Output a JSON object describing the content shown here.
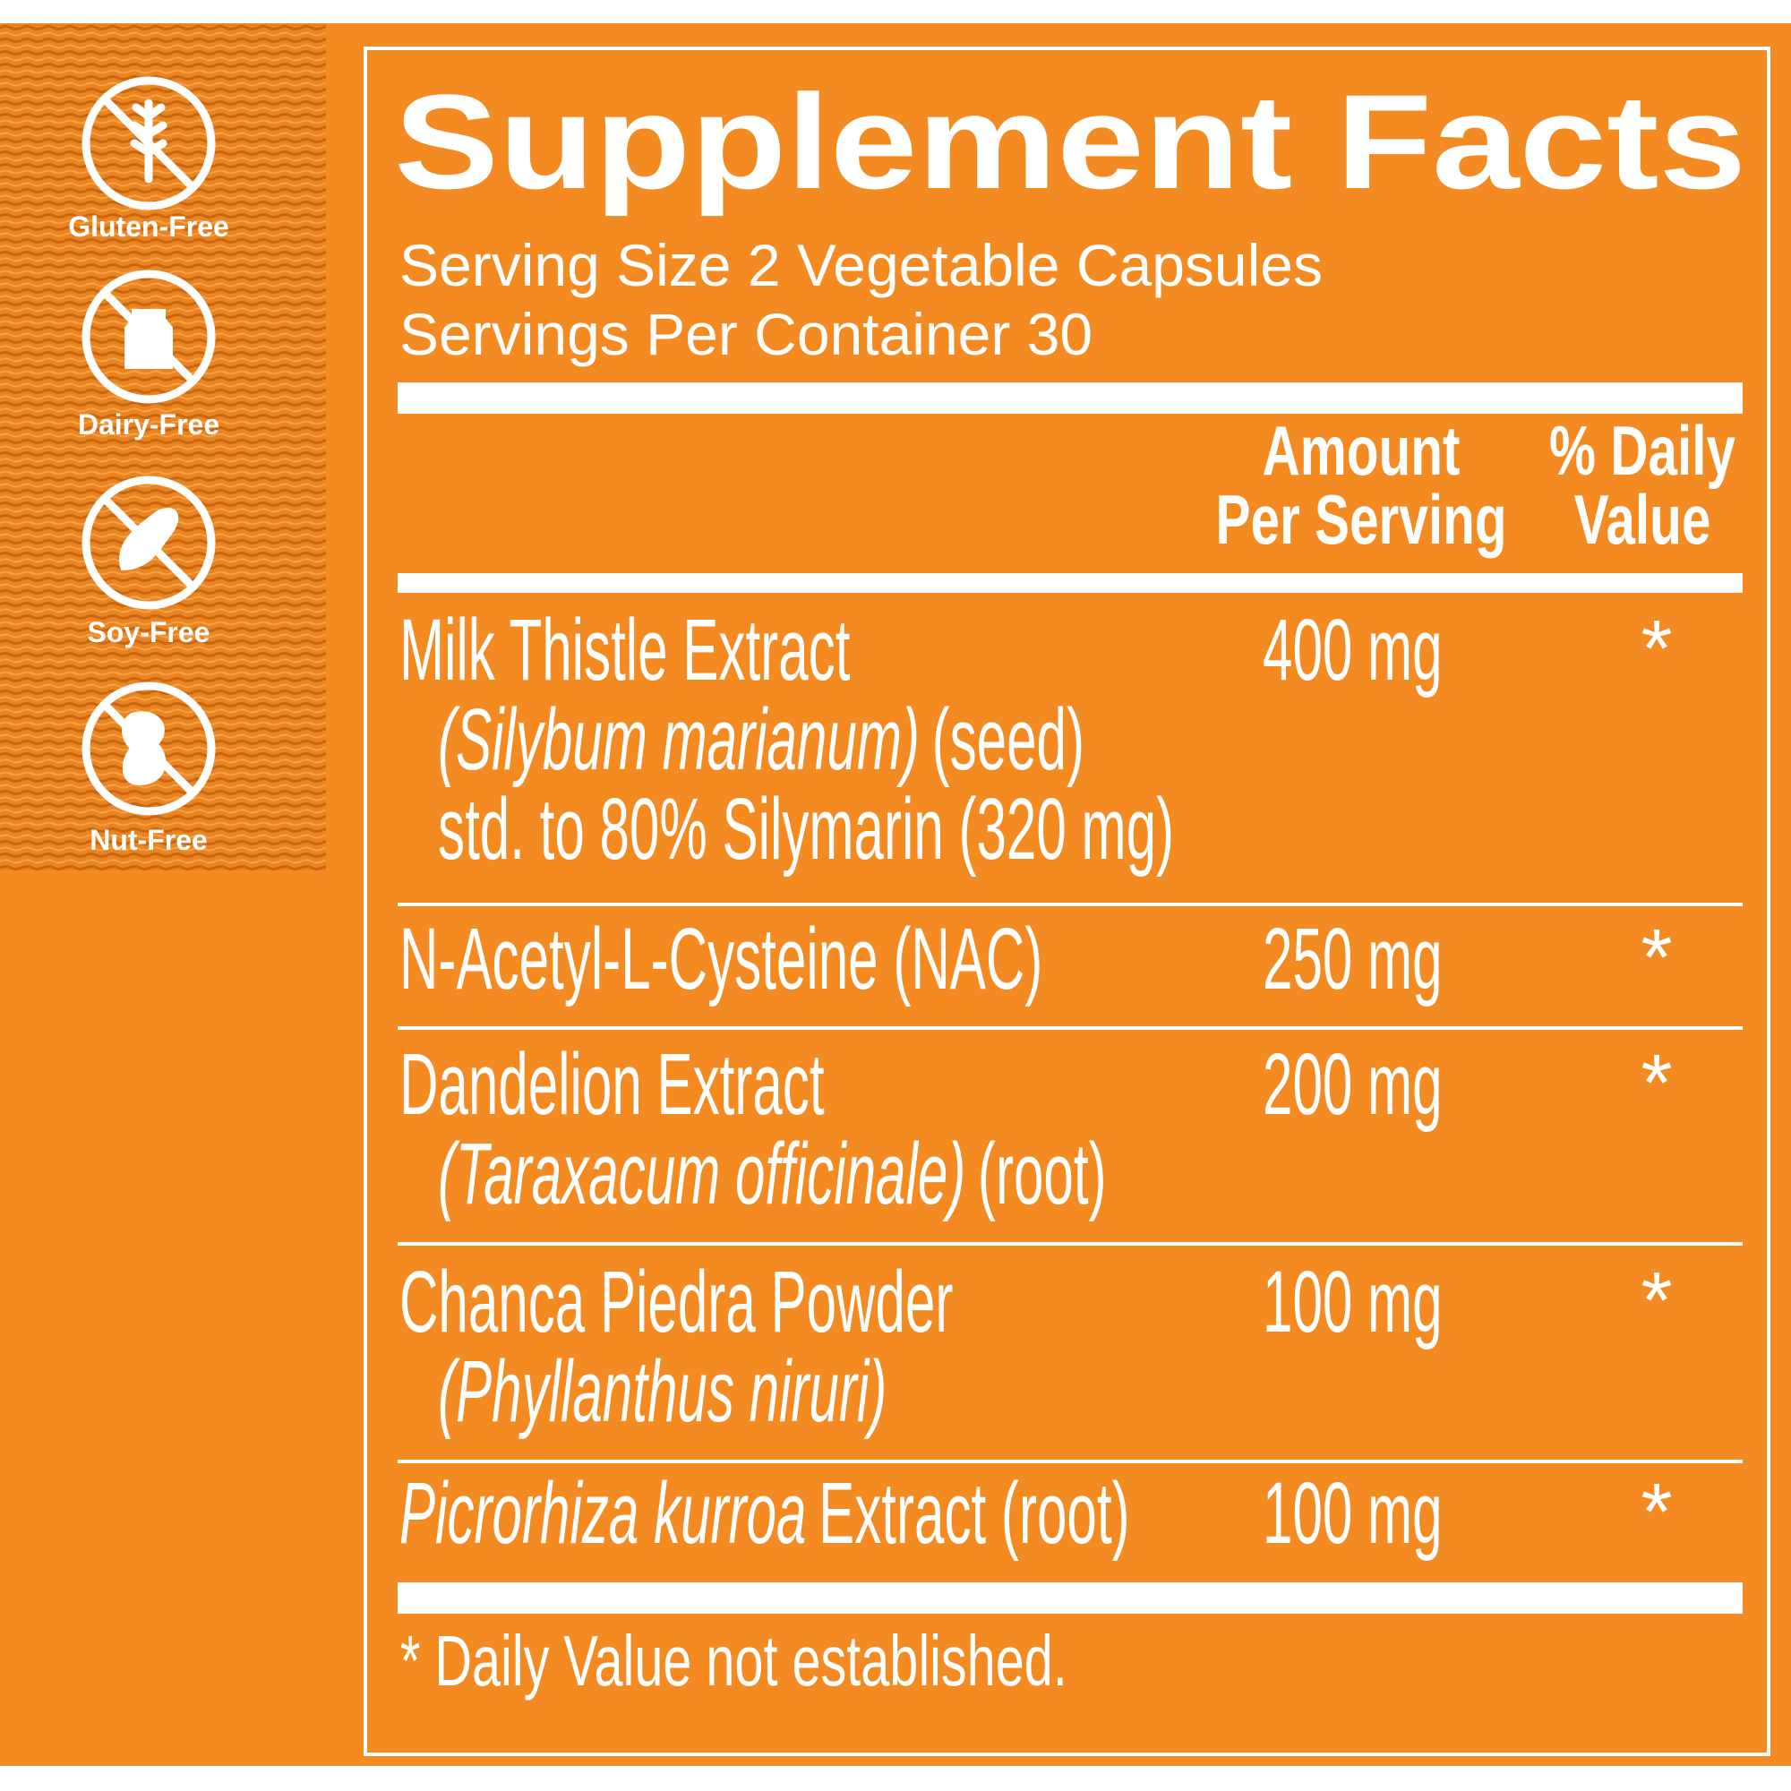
{
  "header": {
    "title": "Supplement Facts",
    "serving_size": "Serving Size 2 Vegetable Capsules",
    "servings_per_container": "Servings Per Container 30"
  },
  "badges": [
    "Gluten-Free",
    "Dairy-Free",
    "Soy-Free",
    "Nut-Free"
  ],
  "columns": {
    "amount": [
      "Amount",
      "Per Serving"
    ],
    "daily_value": [
      "% Daily",
      "Value"
    ]
  },
  "rows": [
    {
      "lines": [
        [
          {
            "text": "Milk Thistle Extract"
          }
        ],
        [
          {
            "text": "(Silybum marianum)",
            "italic": true
          },
          {
            "text": "(seed)"
          }
        ],
        [
          {
            "text": "std. to 80% Silymarin (320 mg)"
          }
        ]
      ],
      "amount": "400 mg",
      "dv": "*"
    },
    {
      "lines": [
        [
          {
            "text": "N-Acetyl-L-Cysteine (NAC)"
          }
        ]
      ],
      "amount": "250 mg",
      "dv": "*"
    },
    {
      "lines": [
        [
          {
            "text": "Dandelion Extract"
          }
        ],
        [
          {
            "text": "(Taraxacum officinale)",
            "italic": true
          },
          {
            "text": "(root)"
          }
        ]
      ],
      "amount": "200 mg",
      "dv": "*"
    },
    {
      "lines": [
        [
          {
            "text": "Chanca Piedra Powder"
          }
        ],
        [
          {
            "text": "(Phyllanthus niruri)",
            "italic": true
          }
        ]
      ],
      "amount": "100 mg",
      "dv": "*"
    },
    {
      "lines": [
        [
          {
            "text": "Picrorhiza kurroa",
            "italic": true
          },
          {
            "text": "Extract (root)"
          }
        ]
      ],
      "amount": "100 mg",
      "dv": "*"
    }
  ],
  "footnote": "*  Daily Value not established."
}
